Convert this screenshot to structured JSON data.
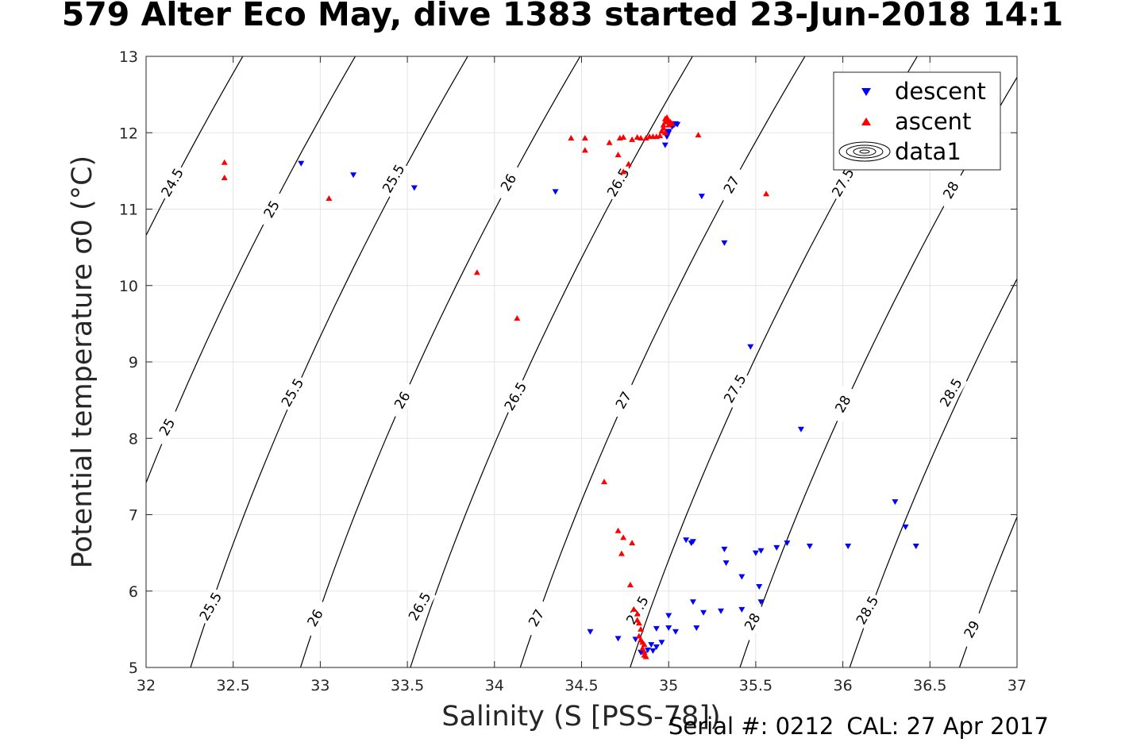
{
  "title": "579 Alter Eco May, dive 1383 started 23-Jun-2018 14:1",
  "footer": {
    "serial": "Serial #: 0212",
    "cal": "CAL: 27 Apr 2017"
  },
  "colors": {
    "descent": "#0000ff",
    "ascent": "#ff0000",
    "contour": "#000000",
    "grid": "#e3e3e3"
  },
  "chart_data": {
    "type": "scatter",
    "xlabel": "Salinity (S [PSS-78])",
    "ylabel": "Potential temperature σ0 (°C)",
    "xlim": [
      32,
      37
    ],
    "ylim": [
      5,
      13
    ],
    "xticks": [
      32,
      32.5,
      33,
      33.5,
      34,
      34.5,
      35,
      35.5,
      36,
      36.5,
      37
    ],
    "xtick_labels": [
      "32",
      "32.5",
      "33",
      "33.5",
      "34",
      "34.5",
      "35",
      "35.5",
      "36",
      "36.5",
      "37"
    ],
    "yticks": [
      5,
      6,
      7,
      8,
      9,
      10,
      11,
      12,
      13
    ],
    "ytick_labels": [
      "5",
      "6",
      "7",
      "8",
      "9",
      "10",
      "11",
      "12",
      "13"
    ],
    "grid": true,
    "legend": {
      "placement": "top-right",
      "entries": [
        "descent",
        "ascent",
        "data1"
      ]
    },
    "contours": {
      "levels": [
        24.5,
        25,
        25.5,
        26,
        26.5,
        27,
        27.5,
        28,
        28.5,
        29
      ],
      "level_labels": [
        "24.5",
        "25",
        "25.5",
        "26",
        "26.5",
        "27",
        "27.5",
        "28",
        "28.5",
        "29"
      ],
      "labels": [
        {
          "text": "24.5",
          "x": 32.15,
          "y": 11.35
        },
        {
          "text": "25",
          "x": 32.72,
          "y": 11.0
        },
        {
          "text": "25",
          "x": 32.12,
          "y": 8.15
        },
        {
          "text": "25.5",
          "x": 33.42,
          "y": 11.4
        },
        {
          "text": "25.5",
          "x": 32.84,
          "y": 8.6
        },
        {
          "text": "25.5",
          "x": 32.37,
          "y": 5.8
        },
        {
          "text": "26",
          "x": 34.08,
          "y": 11.35
        },
        {
          "text": "26",
          "x": 33.47,
          "y": 8.5
        },
        {
          "text": "26",
          "x": 32.97,
          "y": 5.65
        },
        {
          "text": "26.5",
          "x": 34.71,
          "y": 11.35
        },
        {
          "text": "26.5",
          "x": 34.12,
          "y": 8.55
        },
        {
          "text": "26.5",
          "x": 33.57,
          "y": 5.8
        },
        {
          "text": "27",
          "x": 35.36,
          "y": 11.32
        },
        {
          "text": "27",
          "x": 34.74,
          "y": 8.5
        },
        {
          "text": "27",
          "x": 34.24,
          "y": 5.65
        },
        {
          "text": "27.5",
          "x": 36.0,
          "y": 11.35
        },
        {
          "text": "27.5",
          "x": 35.38,
          "y": 8.65
        },
        {
          "text": "27.5",
          "x": 34.82,
          "y": 5.75
        },
        {
          "text": "28",
          "x": 36.62,
          "y": 11.25
        },
        {
          "text": "28",
          "x": 36.0,
          "y": 8.45
        },
        {
          "text": "28",
          "x": 35.48,
          "y": 5.6
        },
        {
          "text": "28.5",
          "x": 36.62,
          "y": 8.6
        },
        {
          "text": "28.5",
          "x": 36.14,
          "y": 5.75
        },
        {
          "text": "29",
          "x": 36.74,
          "y": 5.5
        }
      ]
    },
    "series": [
      {
        "name": "descent",
        "marker": "triangle-down",
        "points": [
          [
            32.89,
            11.6
          ],
          [
            33.19,
            11.45
          ],
          [
            33.54,
            11.28
          ],
          [
            34.35,
            11.23
          ],
          [
            35.19,
            11.17
          ],
          [
            35.32,
            10.56
          ],
          [
            35.47,
            9.2
          ],
          [
            35.76,
            8.12
          ],
          [
            36.3,
            7.17
          ],
          [
            36.36,
            6.84
          ],
          [
            36.42,
            6.59
          ],
          [
            36.03,
            6.59
          ],
          [
            35.81,
            6.59
          ],
          [
            35.68,
            6.63
          ],
          [
            35.62,
            6.57
          ],
          [
            35.53,
            6.53
          ],
          [
            35.5,
            6.5
          ],
          [
            35.32,
            6.55
          ],
          [
            35.1,
            6.67
          ],
          [
            35.13,
            6.63
          ],
          [
            35.14,
            6.65
          ],
          [
            35.33,
            6.37
          ],
          [
            35.42,
            6.19
          ],
          [
            35.52,
            6.06
          ],
          [
            35.53,
            5.86
          ],
          [
            35.42,
            5.76
          ],
          [
            35.3,
            5.74
          ],
          [
            35.2,
            5.72
          ],
          [
            35.14,
            5.86
          ],
          [
            35.16,
            5.52
          ],
          [
            35.0,
            5.68
          ],
          [
            35.0,
            5.52
          ],
          [
            35.04,
            5.47
          ],
          [
            34.93,
            5.51
          ],
          [
            34.96,
            5.33
          ],
          [
            34.93,
            5.27
          ],
          [
            34.9,
            5.3
          ],
          [
            34.88,
            5.23
          ],
          [
            34.91,
            5.22
          ],
          [
            34.84,
            5.2
          ],
          [
            34.86,
            5.18
          ],
          [
            34.81,
            5.37
          ],
          [
            34.71,
            5.38
          ],
          [
            34.55,
            5.47
          ],
          [
            34.98,
            11.84
          ],
          [
            34.99,
            11.95
          ],
          [
            35.0,
            12.02
          ],
          [
            35.02,
            12.08
          ],
          [
            35.03,
            12.1
          ],
          [
            35.04,
            12.12
          ],
          [
            35.05,
            12.11
          ],
          [
            35.0,
            12.0
          ]
        ]
      },
      {
        "name": "ascent",
        "marker": "triangle-up",
        "points": [
          [
            32.45,
            11.61
          ],
          [
            32.45,
            11.41
          ],
          [
            33.05,
            11.14
          ],
          [
            33.9,
            10.17
          ],
          [
            34.13,
            9.57
          ],
          [
            34.63,
            7.43
          ],
          [
            34.71,
            6.79
          ],
          [
            34.74,
            6.7
          ],
          [
            34.79,
            6.63
          ],
          [
            34.73,
            6.49
          ],
          [
            34.78,
            6.08
          ],
          [
            34.8,
            5.76
          ],
          [
            34.82,
            5.7
          ],
          [
            34.82,
            5.62
          ],
          [
            34.83,
            5.58
          ],
          [
            34.84,
            5.5
          ],
          [
            34.83,
            5.41
          ],
          [
            34.84,
            5.36
          ],
          [
            34.85,
            5.33
          ],
          [
            34.86,
            5.3
          ],
          [
            34.85,
            5.25
          ],
          [
            34.86,
            5.2
          ],
          [
            34.86,
            5.16
          ],
          [
            34.87,
            5.14
          ],
          [
            35.17,
            11.97
          ],
          [
            35.56,
            11.2
          ],
          [
            34.74,
            11.49
          ],
          [
            34.77,
            11.59
          ],
          [
            34.71,
            11.71
          ],
          [
            34.66,
            11.87
          ],
          [
            34.72,
            11.93
          ],
          [
            34.74,
            11.94
          ],
          [
            34.79,
            11.91
          ],
          [
            34.82,
            11.94
          ],
          [
            34.84,
            11.93
          ],
          [
            34.52,
            11.93
          ],
          [
            34.52,
            11.77
          ],
          [
            34.44,
            11.93
          ],
          [
            34.87,
            11.93
          ],
          [
            34.89,
            11.95
          ],
          [
            34.91,
            11.95
          ],
          [
            34.93,
            11.95
          ],
          [
            34.95,
            11.96
          ],
          [
            34.96,
            12.02
          ],
          [
            34.97,
            12.06
          ],
          [
            34.97,
            12.1
          ],
          [
            34.98,
            12.14
          ],
          [
            34.98,
            12.18
          ],
          [
            34.99,
            12.2
          ],
          [
            35.0,
            12.16
          ],
          [
            35.01,
            12.14
          ],
          [
            35.02,
            12.12
          ],
          [
            35.0,
            12.1
          ],
          [
            34.98,
            12.0
          ]
        ]
      }
    ]
  }
}
